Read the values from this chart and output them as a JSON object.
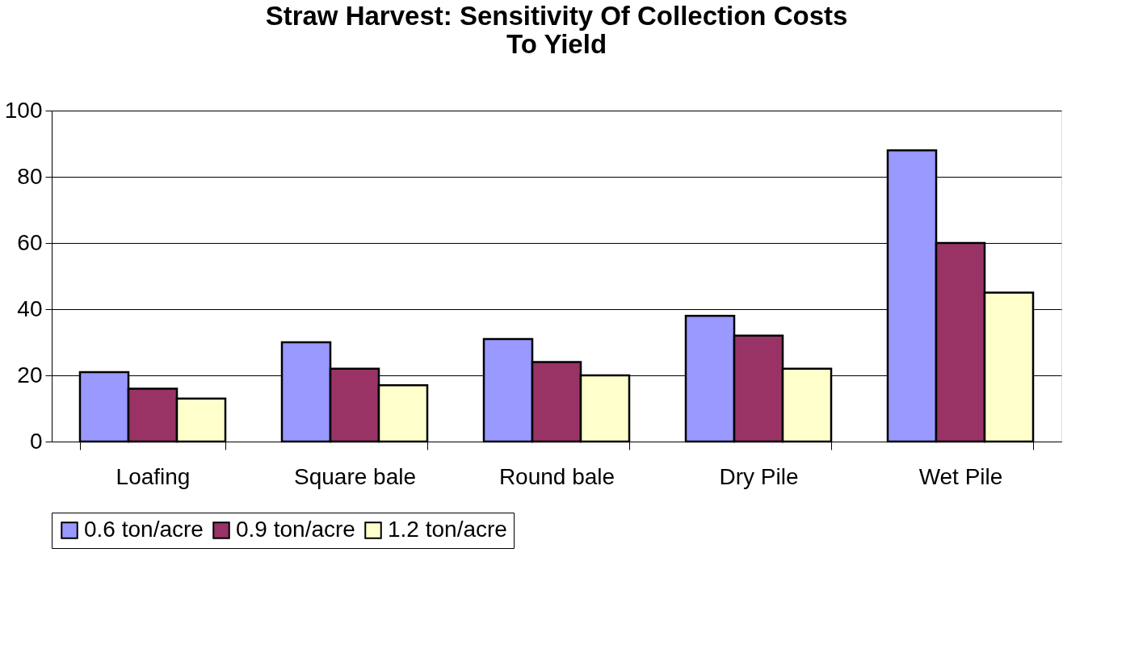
{
  "chart_data": {
    "type": "bar",
    "title": "Straw Harvest: Sensitivity Of Collection Costs To Yield",
    "categories": [
      "Loafing",
      "Square bale",
      "Round bale",
      "Dry Pile",
      "Wet Pile"
    ],
    "series": [
      {
        "name": "0.6 ton/acre",
        "color": "#9999ff",
        "values": [
          21,
          30,
          31,
          38,
          88
        ]
      },
      {
        "name": "0.9 ton/acre",
        "color": "#993366",
        "values": [
          16,
          22,
          24,
          32,
          60
        ]
      },
      {
        "name": "1.2 ton/acre",
        "color": "#ffffcc",
        "values": [
          13,
          17,
          20,
          22,
          45
        ]
      }
    ],
    "ylim": [
      0,
      100
    ],
    "yticks": [
      0,
      20,
      40,
      60,
      80,
      100
    ],
    "grid": "y",
    "legend": "bottom"
  }
}
